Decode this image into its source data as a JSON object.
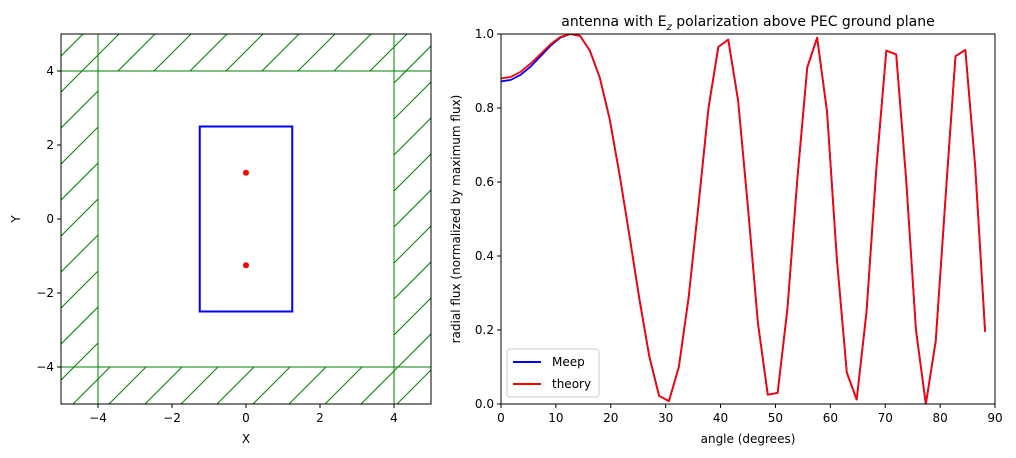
{
  "chart_data": [
    {
      "type": "geometry",
      "xlabel": "X",
      "ylabel": "Y",
      "xlim": [
        -5,
        5
      ],
      "ylim": [
        -5,
        5
      ],
      "xticks": [
        -4,
        -2,
        0,
        2,
        4
      ],
      "yticks": [
        -4,
        -2,
        0,
        2,
        4
      ],
      "xtick_labels": [
        "−4",
        "−2",
        "0",
        "2",
        "4"
      ],
      "ytick_labels": [
        "−4",
        "−2",
        "0",
        "2",
        "4"
      ],
      "pml_boundary": 4,
      "pml_color": "#008000",
      "cell_box": {
        "x": [
          -1.25,
          1.25
        ],
        "y": [
          -2.5,
          2.5
        ],
        "color": "#0000ff"
      },
      "sources": [
        {
          "x": 0,
          "y": 1.25
        },
        {
          "x": 0,
          "y": -1.25
        }
      ],
      "source_color": "#ff0000"
    },
    {
      "type": "line",
      "title_main": "antenna with E",
      "title_sub": "z",
      "title_rest": " polarization above PEC ground plane",
      "xlabel": "angle (degrees)",
      "ylabel": "radial flux (normalized by maximum flux)",
      "xlim": [
        0,
        90
      ],
      "ylim": [
        0,
        1
      ],
      "xticks": [
        0,
        10,
        20,
        30,
        40,
        50,
        60,
        70,
        80,
        90
      ],
      "yticks": [
        0.0,
        0.2,
        0.4,
        0.6,
        0.8,
        1.0
      ],
      "xtick_labels": [
        "0",
        "10",
        "20",
        "30",
        "40",
        "50",
        "60",
        "70",
        "80",
        "90"
      ],
      "ytick_labels": [
        "0.0",
        "0.2",
        "0.4",
        "0.6",
        "0.8",
        "1.0"
      ],
      "legend_position": "lower-left",
      "x": [
        0,
        1.8,
        3.6,
        5.4,
        7.2,
        9.0,
        10.8,
        12.6,
        14.4,
        16.2,
        18.0,
        19.8,
        21.6,
        23.4,
        25.2,
        27.0,
        28.8,
        30.6,
        32.4,
        34.2,
        36.0,
        37.8,
        39.6,
        41.4,
        43.2,
        45.0,
        46.8,
        48.6,
        50.4,
        52.2,
        54.0,
        55.8,
        57.6,
        59.4,
        61.2,
        63.0,
        64.8,
        66.6,
        68.4,
        70.2,
        72.0,
        73.8,
        75.6,
        77.4,
        79.2,
        81.0,
        82.8,
        84.6,
        86.4,
        88.2
      ],
      "series": [
        {
          "name": "Meep",
          "color": "#0000ff",
          "values": [
            0.872,
            0.876,
            0.89,
            0.912,
            0.94,
            0.968,
            0.99,
            1.0,
            0.995,
            0.955,
            0.882,
            0.77,
            0.62,
            0.455,
            0.285,
            0.13,
            0.022,
            0.008,
            0.1,
            0.29,
            0.54,
            0.8,
            0.965,
            0.985,
            0.82,
            0.53,
            0.22,
            0.025,
            0.03,
            0.26,
            0.61,
            0.91,
            0.99,
            0.79,
            0.39,
            0.085,
            0.012,
            0.25,
            0.64,
            0.955,
            0.945,
            0.61,
            0.2,
            0.0,
            0.17,
            0.56,
            0.94,
            0.957,
            0.64,
            0.195
          ]
        },
        {
          "name": "theory",
          "color": "#ff0000",
          "values": [
            0.88,
            0.884,
            0.898,
            0.92,
            0.946,
            0.972,
            0.992,
            1.0,
            0.995,
            0.955,
            0.882,
            0.77,
            0.62,
            0.455,
            0.285,
            0.13,
            0.022,
            0.008,
            0.1,
            0.29,
            0.54,
            0.8,
            0.965,
            0.985,
            0.82,
            0.53,
            0.22,
            0.025,
            0.03,
            0.26,
            0.61,
            0.91,
            0.99,
            0.79,
            0.39,
            0.085,
            0.012,
            0.25,
            0.64,
            0.955,
            0.945,
            0.61,
            0.2,
            0.0,
            0.17,
            0.56,
            0.94,
            0.957,
            0.64,
            0.195
          ]
        }
      ]
    }
  ]
}
